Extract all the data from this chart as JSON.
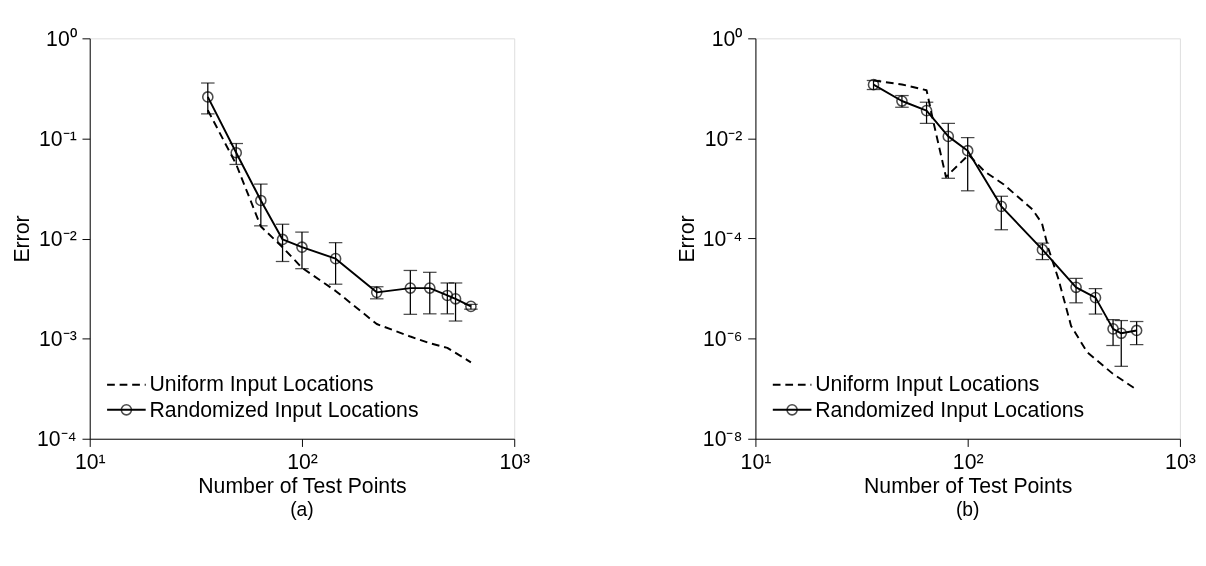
{
  "chart_data": [
    {
      "type": "line",
      "title": "(a)",
      "xlabel": "Number of Test Points",
      "ylabel": "Error",
      "log": "xy",
      "grid": false,
      "legend": "bottom left",
      "xlim": [
        10,
        1000
      ],
      "xticks": [
        {
          "value": 10,
          "label": "10¹"
        },
        {
          "value": 100,
          "label": "10²"
        },
        {
          "value": 1000,
          "label": "10³"
        }
      ],
      "ylim": [
        0.0001,
        1
      ],
      "yticks": [
        {
          "value": 0.0001,
          "label": "10⁻⁴"
        },
        {
          "value": 0.001,
          "label": "10⁻³"
        },
        {
          "value": 0.01,
          "label": "10⁻²"
        },
        {
          "value": 0.1,
          "label": "10⁻¹"
        },
        {
          "value": 1,
          "label": "10⁰"
        }
      ],
      "series": [
        {
          "name": "Uniform Input Locations",
          "color": "#000000",
          "line_style": "dashed",
          "marker": "none",
          "x": [
            36,
            49,
            64,
            81,
            100,
            144,
            225,
            324,
            400,
            484,
            625
          ],
          "values": [
            0.192,
            0.055,
            0.0132,
            0.0082,
            0.0051,
            0.003,
            0.0014,
            0.00105,
            0.0009,
            0.00081,
            0.00058
          ]
        },
        {
          "name": "Randomized Input Locations",
          "color": "#000000",
          "line_style": "solid",
          "marker": "circle",
          "x": [
            36,
            49,
            64,
            81,
            100,
            144,
            225,
            324,
            400,
            484,
            529,
            625
          ],
          "values": [
            0.26,
            0.072,
            0.024,
            0.0098,
            0.0082,
            0.0063,
            0.0029,
            0.0032,
            0.0032,
            0.0027,
            0.0025,
            0.0021
          ],
          "errors": [
            [
              0.176,
              0.358
            ],
            [
              0.055,
              0.089
            ],
            [
              0.0134,
              0.035
            ],
            [
              0.0059,
              0.0139
            ],
            [
              0.005,
              0.0116
            ],
            [
              0.0035,
              0.0091
            ],
            [
              0.0025,
              0.0033
            ],
            [
              0.00175,
              0.0048
            ],
            [
              0.00177,
              0.0046
            ],
            [
              0.00177,
              0.0036
            ],
            [
              0.0015,
              0.0036
            ],
            [
              0.00197,
              0.0022
            ]
          ]
        }
      ]
    },
    {
      "type": "line",
      "title": "(b)",
      "xlabel": "Number of Test Points",
      "ylabel": "Error",
      "log": "xy",
      "grid": false,
      "legend": "bottom left",
      "xlim": [
        10,
        1000
      ],
      "xticks": [
        {
          "value": 10,
          "label": "10¹"
        },
        {
          "value": 100,
          "label": "10²"
        },
        {
          "value": 1000,
          "label": "10³"
        }
      ],
      "ylim": [
        1e-08,
        1
      ],
      "yticks": [
        {
          "value": 1e-08,
          "label": "10⁻⁸"
        },
        {
          "value": 1e-06,
          "label": "10⁻⁶"
        },
        {
          "value": 0.0001,
          "label": "10⁻⁴"
        },
        {
          "value": 0.01,
          "label": "10⁻²"
        },
        {
          "value": 1,
          "label": "10⁰"
        }
      ],
      "series": [
        {
          "name": "Uniform Input Locations",
          "color": "#000000",
          "line_style": "dashed",
          "marker": "none",
          "x": [
            36,
            49,
            64,
            69,
            79,
            101,
            120,
            148,
            202,
            224,
            240,
            267,
            307,
            365,
            482,
            615
          ],
          "values": [
            0.144,
            0.12,
            0.092,
            0.021,
            0.0017,
            0.0047,
            0.0022,
            0.0012,
            0.00038,
            0.0002,
            6.3e-05,
            1.6e-05,
            1.8e-06,
            5.4e-07,
            2e-07,
            1e-07
          ]
        },
        {
          "name": "Randomized Input Locations",
          "color": "#000000",
          "line_style": "solid",
          "marker": "circle",
          "x": [
            36,
            49,
            64,
            81,
            100,
            144,
            225,
            324,
            400,
            484,
            529,
            625
          ],
          "values": [
            0.119,
            0.056,
            0.036,
            0.011,
            0.0057,
            0.00044,
            6e-05,
            1.06e-05,
            6.6e-06,
            1.57e-06,
            1.28e-06,
            1.46e-06
          ],
          "errors": [
            [
              0.095,
              0.144
            ],
            [
              0.042,
              0.072
            ],
            [
              0.02,
              0.053
            ],
            [
              0.0016,
              0.02
            ],
            [
              0.0009,
              0.0104
            ],
            [
              0.00015,
              0.0007
            ],
            [
              3.8e-05,
              8.1e-05
            ],
            [
              5.2e-06,
              1.6e-05
            ],
            [
              3.1e-06,
              1e-05
            ],
            [
              7.3e-07,
              2.4e-06
            ],
            [
              2.8e-07,
              2.3e-06
            ],
            [
              7.6e-07,
              2.2e-06
            ]
          ]
        }
      ]
    }
  ]
}
